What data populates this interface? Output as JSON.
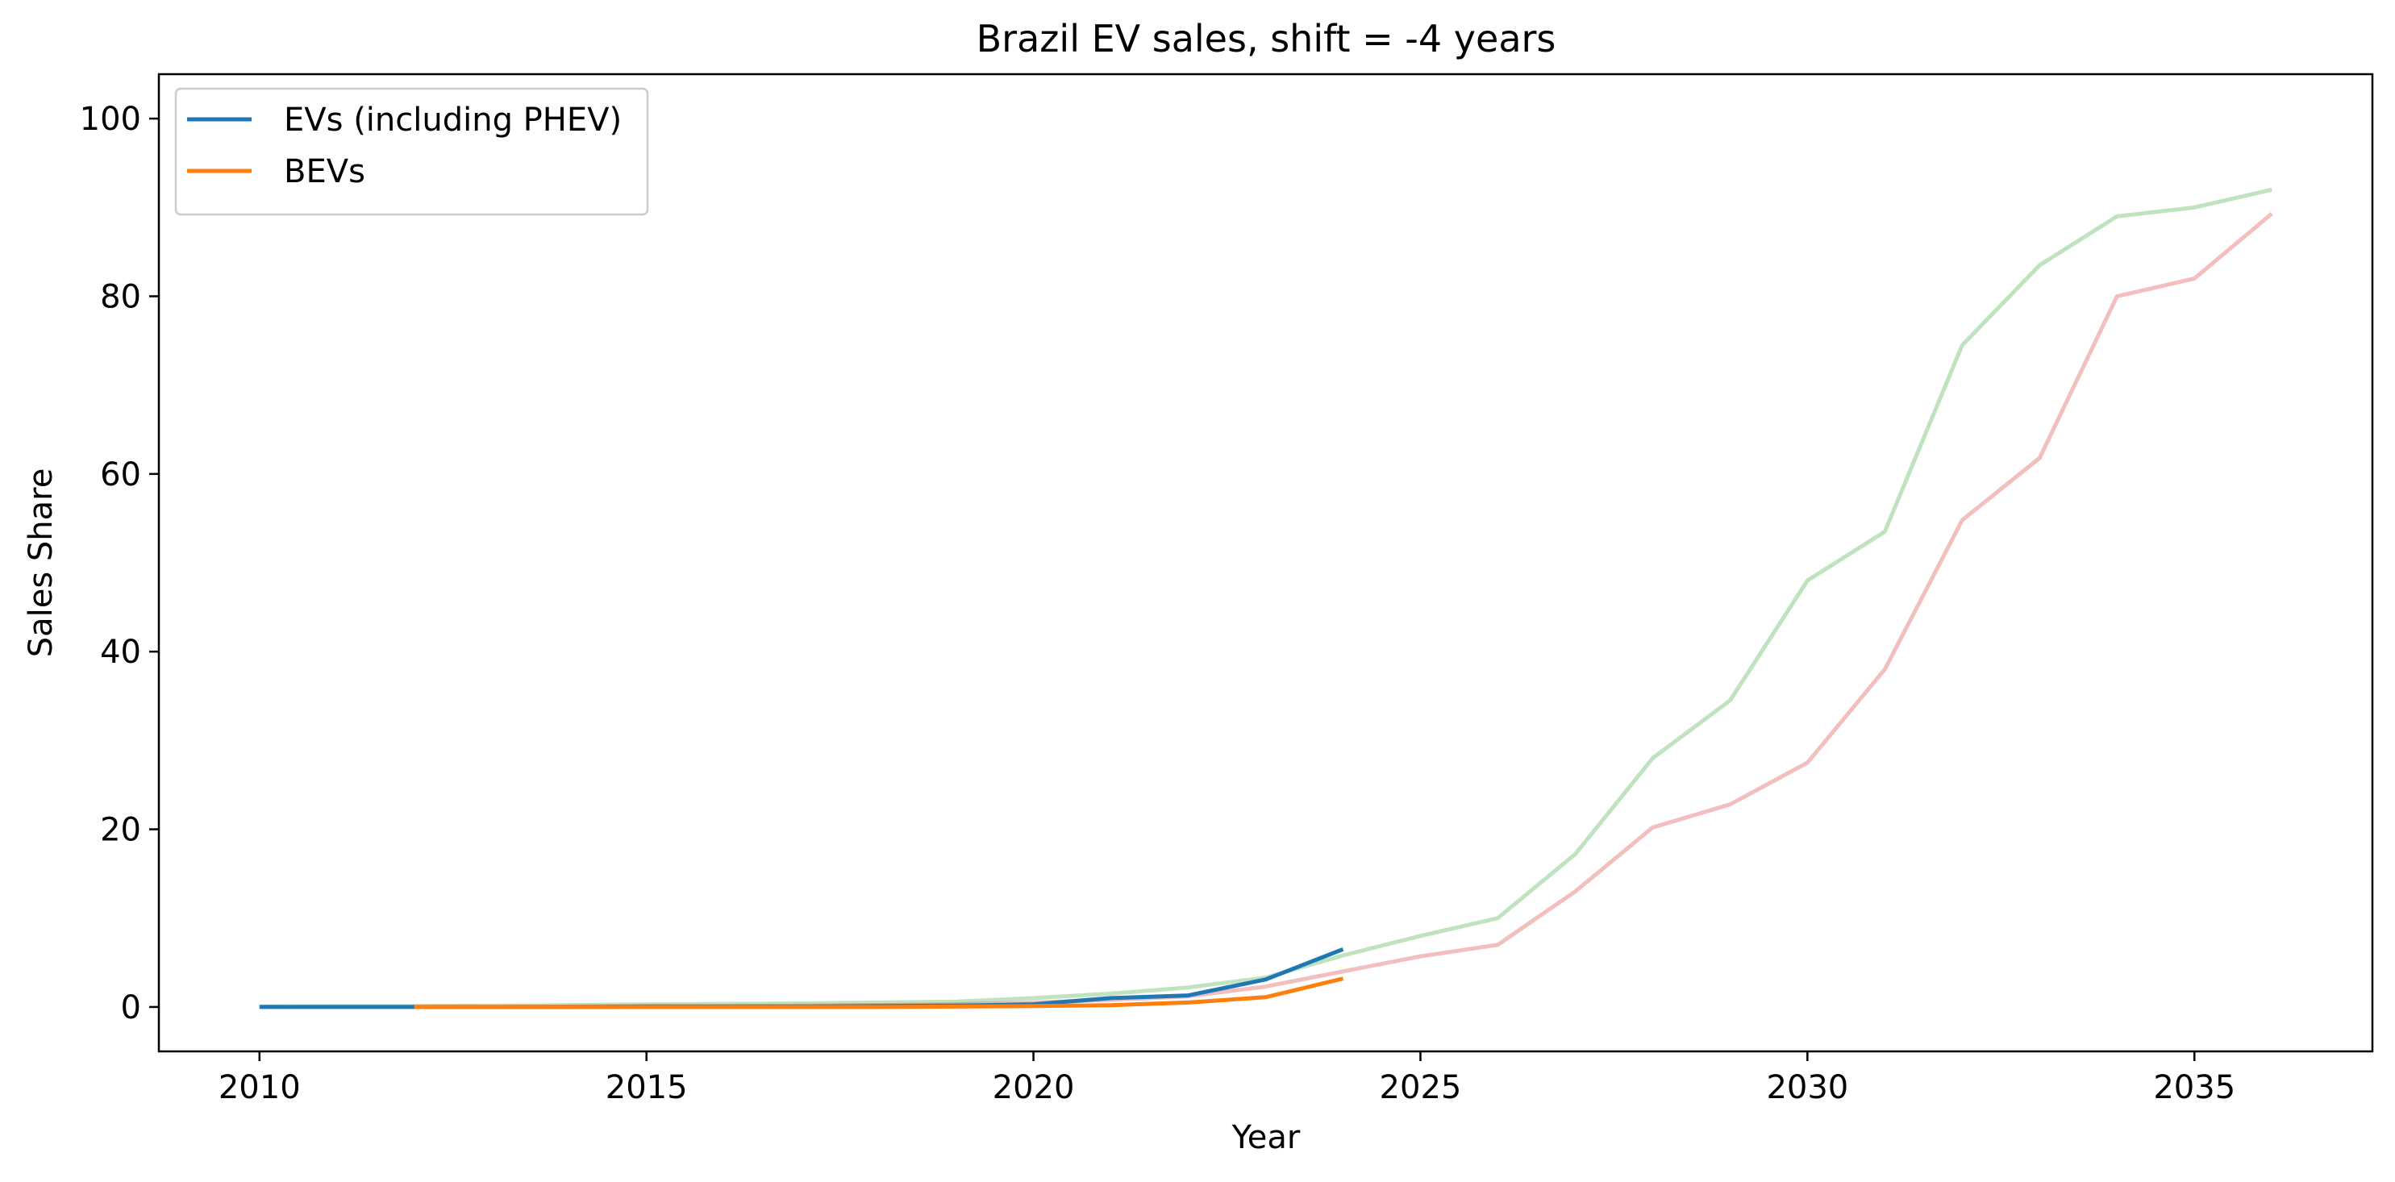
{
  "chart_data": {
    "type": "line",
    "title": "Brazil EV sales, shift = -4 years",
    "xlabel": "Year",
    "ylabel": "Sales Share",
    "xlim": [
      2008.7,
      2037.3
    ],
    "ylim": [
      -5,
      105
    ],
    "xticks": [
      2010,
      2015,
      2020,
      2025,
      2030,
      2035
    ],
    "yticks": [
      0,
      20,
      40,
      60,
      80,
      100
    ],
    "grid": false,
    "legend_position": "top-left",
    "series": [
      {
        "key": "ev_ref",
        "color": "#2ca02c",
        "opacity": 0.3,
        "x": [
          2010,
          2011,
          2012,
          2013,
          2014,
          2015,
          2016,
          2017,
          2018,
          2019,
          2020,
          2021,
          2022,
          2023,
          2024,
          2025,
          2026,
          2027,
          2028,
          2029,
          2030,
          2031,
          2032,
          2033,
          2034,
          2035,
          2036
        ],
        "y": [
          0.05,
          0.1,
          0.1,
          0.15,
          0.2,
          0.3,
          0.35,
          0.4,
          0.5,
          0.6,
          1.0,
          1.5,
          2.2,
          3.3,
          5.8,
          8.0,
          10.0,
          17.2,
          28.0,
          34.5,
          48.0,
          53.5,
          74.5,
          83.5,
          89.0,
          90.0,
          92.0
        ]
      },
      {
        "key": "bev_ref",
        "color": "#d62728",
        "opacity": 0.3,
        "x": [
          2010,
          2011,
          2012,
          2013,
          2014,
          2015,
          2016,
          2017,
          2018,
          2019,
          2020,
          2021,
          2022,
          2023,
          2024,
          2025,
          2026,
          2027,
          2028,
          2029,
          2030,
          2031,
          2032,
          2033,
          2034,
          2035,
          2036
        ],
        "y": [
          0.0,
          0.0,
          0.0,
          0.0,
          0.05,
          0.1,
          0.1,
          0.15,
          0.2,
          0.3,
          0.5,
          0.8,
          1.2,
          2.3,
          4.0,
          5.7,
          7.0,
          13.0,
          20.2,
          22.8,
          27.5,
          38.0,
          54.8,
          61.8,
          80.0,
          82.0,
          89.3
        ]
      },
      {
        "key": "evs",
        "name": "EVs (including PHEV)",
        "color": "#1f77b4",
        "opacity": 1,
        "x": [
          2010,
          2011,
          2012,
          2013,
          2014,
          2015,
          2016,
          2017,
          2018,
          2019,
          2020,
          2021,
          2022,
          2023,
          2024
        ],
        "y": [
          0.0,
          0.0,
          0.0,
          0.0,
          0.0,
          0.05,
          0.05,
          0.05,
          0.1,
          0.15,
          0.3,
          1.0,
          1.3,
          3.1,
          6.5
        ]
      },
      {
        "key": "bevs",
        "name": "BEVs",
        "color": "#ff7f0e",
        "opacity": 1,
        "x": [
          2012,
          2013,
          2014,
          2015,
          2016,
          2017,
          2018,
          2019,
          2020,
          2021,
          2022,
          2023,
          2024
        ],
        "y": [
          0.0,
          0.0,
          0.0,
          0.0,
          0.0,
          0.0,
          0.0,
          0.05,
          0.1,
          0.2,
          0.5,
          1.1,
          3.2
        ]
      }
    ]
  }
}
